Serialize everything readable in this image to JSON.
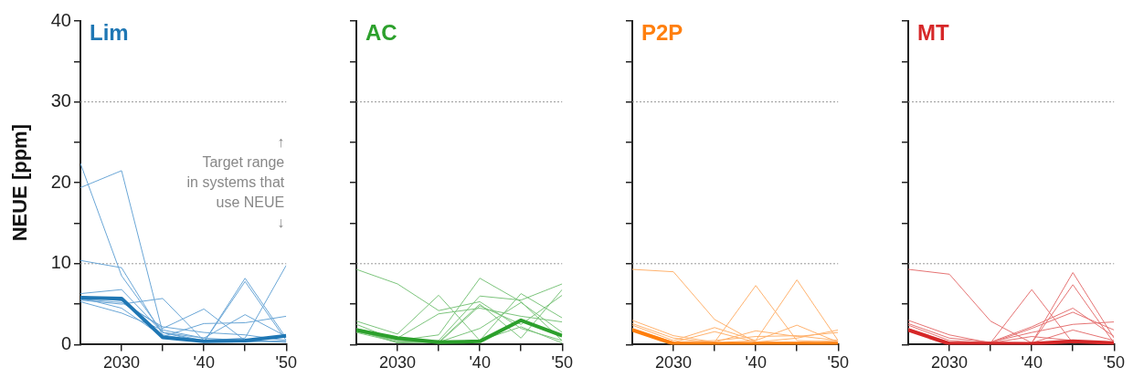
{
  "chart_data": [
    {
      "type": "line",
      "title": "Lim",
      "ylabel": "NEUE [ppm]",
      "x": [
        2025,
        2030,
        2035,
        2040,
        2045,
        2050
      ],
      "xlim": [
        2025,
        2050
      ],
      "xticks": [
        {
          "value": 2030,
          "label": "2030"
        },
        {
          "value": 2035,
          "label": null
        },
        {
          "value": 2040,
          "label": "'40"
        },
        {
          "value": 2045,
          "label": null
        },
        {
          "value": 2050,
          "label": "'50"
        }
      ],
      "ylim": [
        0,
        40
      ],
      "yticks": [
        0,
        {
          "value": 5,
          "label": null
        },
        10,
        {
          "value": 15,
          "label": null
        },
        20,
        {
          "value": 25,
          "label": null
        },
        30,
        {
          "value": 35,
          "label": null
        },
        40
      ],
      "ref_lines": [
        {
          "axis": "y",
          "value": 10,
          "color": "#999999",
          "line_style": "dotted"
        },
        {
          "axis": "y",
          "value": 30,
          "color": "#999999",
          "line_style": "dotted"
        }
      ],
      "annotations": [
        "↑\nTarget range\nin systems that\nuse NEUE\n↓"
      ],
      "series": [
        {
          "color": "#1f77b4",
          "values": [
            5.8,
            5.7,
            0.9,
            0.4,
            0.5,
            1.1
          ]
        },
        {
          "color": "#6aa6d6",
          "values": [
            22.4,
            8.5,
            1.5,
            0.5,
            0.3,
            0.5
          ]
        },
        {
          "color": "#6aa6d6",
          "values": [
            19.4,
            21.5,
            1.5,
            0.8,
            0.5,
            0.3
          ]
        },
        {
          "color": "#6aa6d6",
          "values": [
            10.4,
            9.5,
            1.2,
            0.3,
            8.2,
            0.8
          ]
        },
        {
          "color": "#6aa6d6",
          "values": [
            6.3,
            6.8,
            1.5,
            0.3,
            7.8,
            0.5
          ]
        },
        {
          "color": "#6aa6d6",
          "values": [
            5.5,
            5.0,
            5.7,
            0.5,
            0.8,
            9.8
          ]
        },
        {
          "color": "#6aa6d6",
          "values": [
            6.0,
            5.4,
            2.0,
            4.4,
            0.5,
            0.3
          ]
        },
        {
          "color": "#6aa6d6",
          "values": [
            5.3,
            3.9,
            1.8,
            0.8,
            3.7,
            1.0
          ]
        },
        {
          "color": "#6aa6d6",
          "values": [
            5.8,
            4.5,
            1.0,
            2.6,
            2.7,
            3.5
          ]
        },
        {
          "color": "#6aa6d6",
          "values": [
            5.6,
            5.2,
            2.2,
            1.5,
            1.2,
            0.5
          ]
        }
      ]
    },
    {
      "type": "line",
      "title": "AC",
      "tick_labels": "x",
      "x": [
        2025,
        2030,
        2035,
        2040,
        2045,
        2050
      ],
      "xlim": [
        2025,
        2050
      ],
      "xticks": [
        {
          "value": 2030,
          "label": "2030"
        },
        {
          "value": 2035,
          "label": null
        },
        {
          "value": 2040,
          "label": "'40"
        },
        {
          "value": 2045,
          "label": null
        },
        {
          "value": 2050,
          "label": "'50"
        }
      ],
      "ylim": [
        0,
        40
      ],
      "yticks": [
        0,
        {
          "value": 5,
          "label": null
        },
        10,
        {
          "value": 15,
          "label": null
        },
        20,
        {
          "value": 25,
          "label": null
        },
        30,
        {
          "value": 35,
          "label": null
        },
        40
      ],
      "ref_lines": [
        {
          "axis": "y",
          "value": 10,
          "color": "#999999",
          "line_style": "dotted"
        },
        {
          "axis": "y",
          "value": 30,
          "color": "#999999",
          "line_style": "dotted"
        }
      ],
      "series": [
        {
          "color": "#2ca02c",
          "values": [
            1.8,
            0.8,
            0.3,
            0.4,
            3.0,
            1.1
          ]
        },
        {
          "color": "#7cc47c",
          "values": [
            9.3,
            7.5,
            4.2,
            5.3,
            2.0,
            0.5
          ]
        },
        {
          "color": "#7cc47c",
          "values": [
            2.9,
            1.3,
            6.1,
            0.5,
            6.3,
            3.3
          ]
        },
        {
          "color": "#7cc47c",
          "values": [
            2.5,
            0.5,
            1.2,
            8.2,
            5.3,
            0.5
          ]
        },
        {
          "color": "#7cc47c",
          "values": [
            1.5,
            0.3,
            0.5,
            6.0,
            5.5,
            7.5
          ]
        },
        {
          "color": "#7cc47c",
          "values": [
            1.8,
            0.2,
            0.3,
            5.0,
            0.8,
            6.8
          ]
        },
        {
          "color": "#7cc47c",
          "values": [
            1.6,
            0.5,
            0.2,
            4.8,
            2.5,
            6.1
          ]
        },
        {
          "color": "#7cc47c",
          "values": [
            2.0,
            0.8,
            3.8,
            4.5,
            3.5,
            2.8
          ]
        },
        {
          "color": "#7cc47c",
          "values": [
            1.8,
            0.3,
            0.3,
            2.0,
            5.2,
            1.5
          ]
        },
        {
          "color": "#7cc47c",
          "values": [
            1.7,
            0.6,
            0.2,
            0.5,
            2.2,
            0.2
          ]
        }
      ]
    },
    {
      "type": "line",
      "title": "P2P",
      "tick_labels": "x",
      "x": [
        2025,
        2030,
        2035,
        2040,
        2045,
        2050
      ],
      "xlim": [
        2025,
        2050
      ],
      "xticks": [
        {
          "value": 2030,
          "label": "2030"
        },
        {
          "value": 2035,
          "label": null
        },
        {
          "value": 2040,
          "label": "'40"
        },
        {
          "value": 2045,
          "label": null
        },
        {
          "value": 2050,
          "label": "'50"
        }
      ],
      "ylim": [
        0,
        40
      ],
      "yticks": [
        0,
        {
          "value": 5,
          "label": null
        },
        10,
        {
          "value": 15,
          "label": null
        },
        20,
        {
          "value": 25,
          "label": null
        },
        30,
        {
          "value": 35,
          "label": null
        },
        40
      ],
      "ref_lines": [
        {
          "axis": "y",
          "value": 10,
          "color": "#999999",
          "line_style": "dotted"
        },
        {
          "axis": "y",
          "value": 30,
          "color": "#999999",
          "line_style": "dotted"
        }
      ],
      "series": [
        {
          "color": "#ff7f0e",
          "values": [
            1.8,
            0.1,
            0.1,
            0.1,
            0.1,
            0.1
          ]
        },
        {
          "color": "#ffb26e",
          "values": [
            9.3,
            9.0,
            3.1,
            0.3,
            0.3,
            0.5
          ]
        },
        {
          "color": "#ffb26e",
          "values": [
            3.0,
            1.1,
            0.3,
            7.3,
            0.5,
            0.3
          ]
        },
        {
          "color": "#ffb26e",
          "values": [
            2.6,
            0.8,
            0.2,
            0.5,
            8.0,
            0.5
          ]
        },
        {
          "color": "#ffb26e",
          "values": [
            2.4,
            0.5,
            2.1,
            0.5,
            2.4,
            0.3
          ]
        },
        {
          "color": "#ffb26e",
          "values": [
            2.0,
            0.3,
            1.6,
            0.3,
            0.8,
            1.8
          ]
        },
        {
          "color": "#ffb26e",
          "values": [
            1.8,
            0.2,
            0.3,
            1.7,
            1.0,
            1.5
          ]
        },
        {
          "color": "#ffb26e",
          "values": [
            1.9,
            0.3,
            0.5,
            1.0,
            1.1,
            0.5
          ]
        }
      ]
    },
    {
      "type": "line",
      "title": "MT",
      "tick_labels": "x",
      "x": [
        2025,
        2030,
        2035,
        2040,
        2045,
        2050
      ],
      "xlim": [
        2025,
        2050
      ],
      "xticks": [
        {
          "value": 2030,
          "label": "2030"
        },
        {
          "value": 2035,
          "label": null
        },
        {
          "value": 2040,
          "label": "'40"
        },
        {
          "value": 2045,
          "label": null
        },
        {
          "value": 2050,
          "label": "'50"
        }
      ],
      "ylim": [
        0,
        40
      ],
      "yticks": [
        0,
        {
          "value": 5,
          "label": null
        },
        10,
        {
          "value": 15,
          "label": null
        },
        20,
        {
          "value": 25,
          "label": null
        },
        30,
        {
          "value": 35,
          "label": null
        },
        40
      ],
      "ref_lines": [
        {
          "axis": "y",
          "value": 10,
          "color": "#999999",
          "line_style": "dotted"
        },
        {
          "axis": "y",
          "value": 30,
          "color": "#999999",
          "line_style": "dotted"
        }
      ],
      "series": [
        {
          "color": "#d62728",
          "values": [
            1.8,
            0.1,
            0.1,
            0.1,
            0.4,
            0.2
          ]
        },
        {
          "color": "#e57373",
          "values": [
            9.3,
            8.7,
            2.9,
            0.2,
            1.8,
            0.5
          ]
        },
        {
          "color": "#e57373",
          "values": [
            3.0,
            1.2,
            0.2,
            6.8,
            0.2,
            0.3
          ]
        },
        {
          "color": "#e57373",
          "values": [
            2.6,
            0.8,
            0.3,
            0.2,
            8.9,
            0.8
          ]
        },
        {
          "color": "#e57373",
          "values": [
            2.4,
            0.5,
            0.2,
            0.2,
            7.4,
            0.2
          ]
        },
        {
          "color": "#e57373",
          "values": [
            2.0,
            0.3,
            0.3,
            2.2,
            4.5,
            1.0
          ]
        },
        {
          "color": "#e57373",
          "values": [
            1.9,
            0.2,
            0.2,
            2.0,
            4.0,
            1.8
          ]
        },
        {
          "color": "#e57373",
          "values": [
            1.8,
            0.2,
            0.3,
            1.5,
            2.5,
            2.8
          ]
        },
        {
          "color": "#e57373",
          "values": [
            1.7,
            0.1,
            0.2,
            1.0,
            0.5,
            0.2
          ]
        }
      ]
    }
  ]
}
